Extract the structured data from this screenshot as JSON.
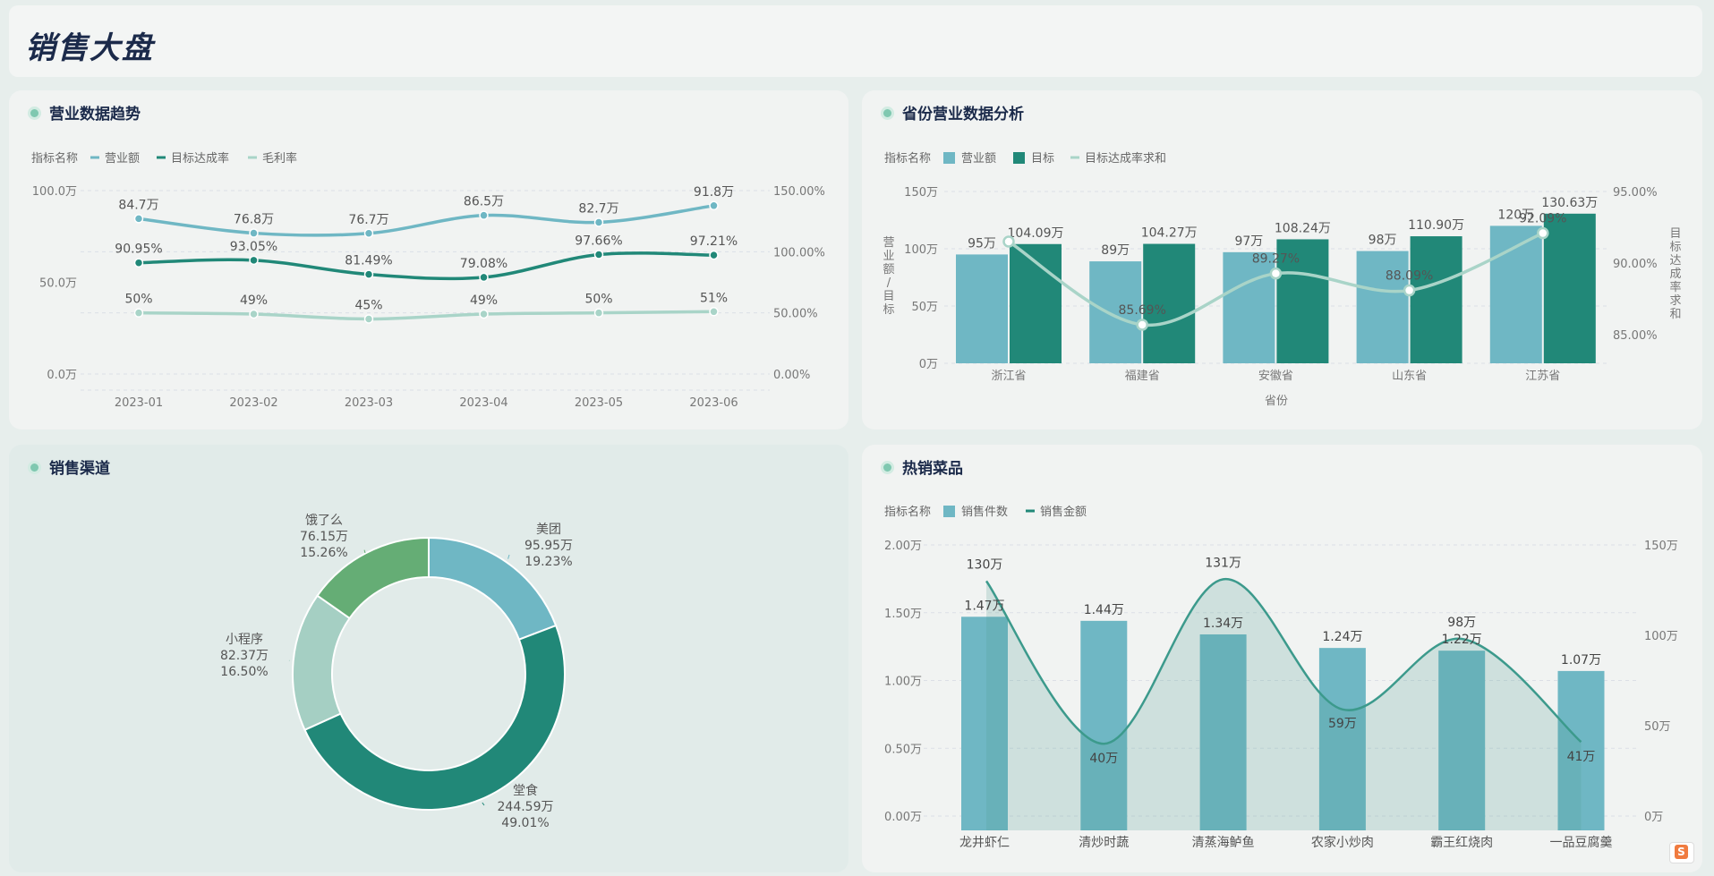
{
  "header": {
    "title": "销售大盘"
  },
  "panels": {
    "trend": "营业数据趋势",
    "province": "省份营业数据分析",
    "channel": "销售渠道",
    "dishes": "热销菜品"
  },
  "colors": {
    "teal_light": "#6fb7c4",
    "teal_dark": "#218878",
    "mint": "#a9d4c8",
    "green": "#65ad75",
    "bg": "#f1f3f2"
  },
  "chart_data": [
    {
      "id": "trend",
      "type": "line",
      "legend_title": "指标名称",
      "legend_position": "top-left",
      "categories": [
        "2023-01",
        "2023-02",
        "2023-03",
        "2023-04",
        "2023-05",
        "2023-06"
      ],
      "y_ticks": [
        "100.0万",
        "50.0万",
        "0.0万"
      ],
      "y2_ticks": [
        "150.00%",
        "100.00%",
        "50.00%",
        "0.00%"
      ],
      "ylim": [
        0,
        100
      ],
      "y2lim": [
        0,
        150
      ],
      "series": [
        {
          "name": "营业额",
          "axis": "left",
          "color": "#6fb7c4",
          "values": [
            84.7,
            76.8,
            76.7,
            86.5,
            82.7,
            91.8
          ],
          "labels": [
            "84.7万",
            "76.8万",
            "76.7万",
            "86.5万",
            "82.7万",
            "91.8万"
          ]
        },
        {
          "name": "目标达成率",
          "axis": "right",
          "color": "#218878",
          "values": [
            90.95,
            93.05,
            81.49,
            79.08,
            97.66,
            97.21
          ],
          "labels": [
            "90.95%",
            "93.05%",
            "81.49%",
            "79.08%",
            "97.66%",
            "97.21%"
          ]
        },
        {
          "name": "毛利率",
          "axis": "right",
          "color": "#a9d4c8",
          "values": [
            50,
            49,
            45,
            49,
            50,
            51
          ],
          "labels": [
            "50%",
            "49%",
            "45%",
            "49%",
            "50%",
            "51%"
          ]
        }
      ]
    },
    {
      "id": "province",
      "type": "bar",
      "legend_title": "指标名称",
      "legend_position": "top-left",
      "categories": [
        "浙江省",
        "福建省",
        "安徽省",
        "山东省",
        "江苏省"
      ],
      "xlabel": "省份",
      "ylabel": "营业额/目标",
      "y2label": "目标达成率求和",
      "y_ticks": [
        "150万",
        "100万",
        "50万",
        "0万"
      ],
      "y2_ticks": [
        "95.00%",
        "90.00%",
        "85.00%"
      ],
      "ylim": [
        0,
        150
      ],
      "y2lim": [
        83,
        95
      ],
      "series": [
        {
          "name": "营业额",
          "kind": "bar",
          "color": "#6fb7c4",
          "values": [
            95,
            89,
            97,
            98,
            120
          ],
          "labels": [
            "95万",
            "89万",
            "97万",
            "98万",
            "120万"
          ]
        },
        {
          "name": "目标",
          "kind": "bar",
          "color": "#218878",
          "values": [
            104.09,
            104.27,
            108.24,
            110.9,
            130.63
          ],
          "labels": [
            "104.09万",
            "104.27万",
            "108.24万",
            "110.90万",
            "130.63万"
          ]
        },
        {
          "name": "目标达成率求和",
          "kind": "line",
          "color": "#a9d4c8",
          "values": [
            91.5,
            85.69,
            89.27,
            88.09,
            92.09
          ],
          "labels": [
            "",
            "85.69%",
            "89.27%",
            "88.09%",
            "92.09%"
          ]
        }
      ]
    },
    {
      "id": "channel",
      "type": "pie",
      "donut": true,
      "slices": [
        {
          "name": "美团",
          "value": 95.95,
          "value_label": "95.95万",
          "percent": "19.23%",
          "color": "#6fb7c4"
        },
        {
          "name": "堂食",
          "value": 244.59,
          "value_label": "244.59万",
          "percent": "49.01%",
          "color": "#218878"
        },
        {
          "name": "小程序",
          "value": 82.37,
          "value_label": "82.37万",
          "percent": "16.50%",
          "color": "#a5cfc3"
        },
        {
          "name": "饿了么",
          "value": 76.15,
          "value_label": "76.15万",
          "percent": "15.26%",
          "color": "#65ad75"
        }
      ]
    },
    {
      "id": "dishes",
      "type": "bar",
      "legend_title": "指标名称",
      "legend_position": "top-left",
      "categories": [
        "龙井虾仁",
        "清炒时蔬",
        "清蒸海鲈鱼",
        "农家小炒肉",
        "霸王红烧肉",
        "一品豆腐羹"
      ],
      "y_ticks": [
        "2.00万",
        "1.50万",
        "1.00万",
        "0.50万",
        "0.00万"
      ],
      "y2_ticks": [
        "150万",
        "100万",
        "50万",
        "0万"
      ],
      "ylim": [
        0,
        2
      ],
      "y2lim": [
        0,
        150
      ],
      "series": [
        {
          "name": "销售件数",
          "kind": "bar",
          "color": "#6fb7c4",
          "values": [
            1.47,
            1.44,
            1.34,
            1.24,
            1.22,
            1.07
          ],
          "labels": [
            "1.47万",
            "1.44万",
            "1.34万",
            "1.24万",
            "1.22万",
            "1.07万"
          ]
        },
        {
          "name": "销售金额",
          "kind": "area",
          "color": "#3c9a8c",
          "values": [
            130,
            40,
            131,
            59,
            98,
            41
          ],
          "labels": [
            "130万",
            "40万",
            "131万",
            "59万",
            "98万",
            "41万"
          ]
        }
      ]
    }
  ]
}
